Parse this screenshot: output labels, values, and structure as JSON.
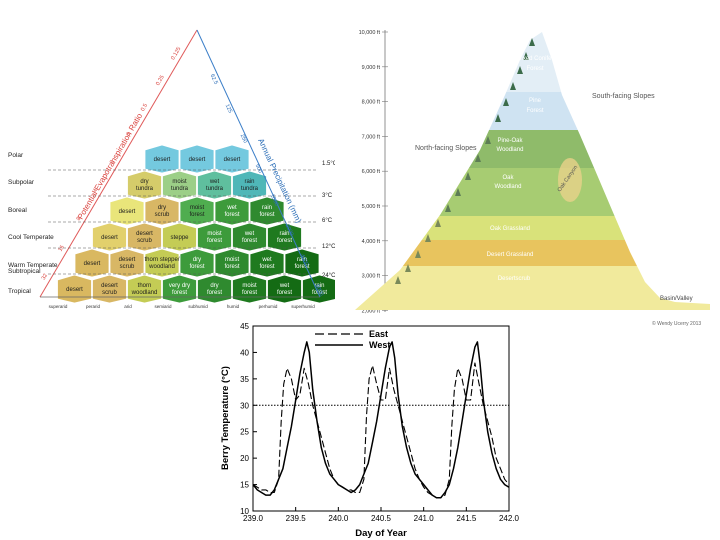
{
  "triangle": {
    "latitudinal_regions": [
      "Polar",
      "Subpolar",
      "Boreal",
      "Cool Temperate",
      "Warm Temperate",
      "Subtropical",
      "Tropical"
    ],
    "temperatures": [
      "1.5°C",
      "3°C",
      "6°C",
      "12°C",
      "24°C"
    ],
    "left_axis_title": "Potential Evapotranspiration Ratio",
    "right_axis_title": "Annual Precipitation (mm)",
    "left_axis_values": [
      "0.125",
      "0.25",
      "0.5",
      "1",
      "2",
      "4",
      "8",
      "16",
      "32"
    ],
    "right_axis_values": [
      "62.5",
      "125",
      "250",
      "500",
      "1000",
      "2000",
      "4000",
      "8000"
    ],
    "humidity_provinces": [
      "superarid",
      "perarid",
      "arid",
      "semiarid",
      "subhumid",
      "humid",
      "perhumid",
      "superhumid"
    ],
    "rows": [
      [
        "desert",
        "desert",
        "desert"
      ],
      [
        "dry tundra",
        "moist tundra",
        "wet tundra",
        "rain tundra"
      ],
      [
        "desert",
        "dry scrub",
        "moist forest",
        "wet forest",
        "rain forest"
      ],
      [
        "desert",
        "desert scrub",
        "steppe",
        "moist forest",
        "wet forest",
        "rain forest"
      ],
      [
        "desert",
        "desert scrub",
        "thorn steppe/ woodland",
        "dry forest",
        "moist forest",
        "wet forest",
        "rain forest"
      ],
      [
        "desert",
        "desert scrub",
        "thorn woodland",
        "very dry forest",
        "dry forest",
        "moist forest",
        "wet forest",
        "rain forest"
      ]
    ]
  },
  "mountain": {
    "altitudes": [
      "10,000 ft",
      "9,000 ft",
      "8,000 ft",
      "7,000 ft",
      "6,000 ft",
      "5,000 ft",
      "4,000 ft",
      "3,000 ft",
      "2,000 ft"
    ],
    "north_label": "North-facing Slopes",
    "south_label": "South-facing Slopes",
    "zones": [
      "Mixed Conifer Forest",
      "Pine Forest",
      "Pine-Oak Woodland",
      "Oak Woodland",
      "Oak Grassland",
      "Desert Grassland",
      "Desertscrub"
    ],
    "canyon_label": "Oak Canyon",
    "basin_label": "Basin/Valley",
    "credit": "© Wendy Ucerry 2013"
  },
  "chart_data": {
    "type": "line",
    "xlabel": "Day of Year",
    "ylabel": "Berry Temperature (°C)",
    "xlim": [
      239.0,
      242.0
    ],
    "ylim": [
      10,
      45
    ],
    "xticks": [
      "239.0",
      "239.5",
      "240.0",
      "240.5",
      "241.0",
      "241.5",
      "242.0"
    ],
    "yticks": [
      "10",
      "15",
      "20",
      "25",
      "30",
      "35",
      "40",
      "45"
    ],
    "reference_line": 30,
    "legend": [
      "East",
      "West"
    ],
    "series": [
      {
        "name": "East",
        "x": [
          239.0,
          239.05,
          239.1,
          239.15,
          239.2,
          239.25,
          239.3,
          239.33,
          239.36,
          239.4,
          239.45,
          239.5,
          239.55,
          239.6,
          239.65,
          239.7,
          239.75,
          239.8,
          239.85,
          239.9,
          239.95,
          240.0,
          240.05,
          240.1,
          240.15,
          240.2,
          240.25,
          240.3,
          240.33,
          240.36,
          240.4,
          240.45,
          240.5,
          240.55,
          240.6,
          240.65,
          240.7,
          240.75,
          240.8,
          240.85,
          240.9,
          240.95,
          241.0,
          241.05,
          241.1,
          241.15,
          241.2,
          241.25,
          241.3,
          241.33,
          241.36,
          241.4,
          241.45,
          241.5,
          241.55,
          241.6,
          241.65,
          241.7,
          241.75,
          241.8,
          241.85,
          241.9,
          241.95,
          242.0
        ],
        "y": [
          15,
          14.5,
          14,
          14,
          13.5,
          13.5,
          16,
          27,
          34,
          37,
          35,
          31,
          32,
          37,
          34,
          30,
          27,
          24,
          21,
          18,
          16,
          15,
          14.5,
          14,
          14,
          13.5,
          13.5,
          16,
          28,
          35,
          37.5,
          34,
          31,
          31,
          37,
          33,
          30,
          27,
          24,
          21,
          18,
          16,
          14.5,
          13.5,
          13,
          12.5,
          12.5,
          13,
          16,
          26,
          33,
          37,
          35,
          31,
          31,
          38,
          34,
          30,
          27,
          24,
          20,
          18,
          16,
          15
        ]
      },
      {
        "name": "West",
        "x": [
          239.0,
          239.05,
          239.1,
          239.15,
          239.2,
          239.25,
          239.3,
          239.35,
          239.4,
          239.45,
          239.5,
          239.55,
          239.6,
          239.63,
          239.66,
          239.7,
          239.75,
          239.8,
          239.85,
          239.9,
          239.95,
          240.0,
          240.05,
          240.1,
          240.15,
          240.2,
          240.25,
          240.3,
          240.35,
          240.4,
          240.45,
          240.5,
          240.55,
          240.6,
          240.63,
          240.66,
          240.7,
          240.75,
          240.8,
          240.85,
          240.9,
          240.95,
          241.0,
          241.05,
          241.1,
          241.15,
          241.2,
          241.25,
          241.3,
          241.35,
          241.4,
          241.45,
          241.5,
          241.55,
          241.6,
          241.63,
          241.66,
          241.7,
          241.75,
          241.8,
          241.85,
          241.9,
          241.95,
          242.0
        ],
        "y": [
          15,
          14,
          13.5,
          13,
          13,
          14,
          16,
          18,
          22,
          26,
          31,
          36,
          40,
          42,
          40,
          33,
          27,
          22,
          19,
          17,
          16,
          15,
          14.5,
          14,
          13.5,
          14,
          15,
          17,
          19,
          23,
          27,
          32,
          37,
          41,
          42,
          39,
          32,
          26,
          22,
          19,
          17,
          16,
          15,
          14,
          13,
          12.5,
          12.5,
          13.5,
          15,
          18,
          22,
          27,
          32,
          37,
          41,
          42,
          38,
          31,
          25,
          21,
          18,
          16,
          15,
          14.5
        ]
      }
    ]
  }
}
